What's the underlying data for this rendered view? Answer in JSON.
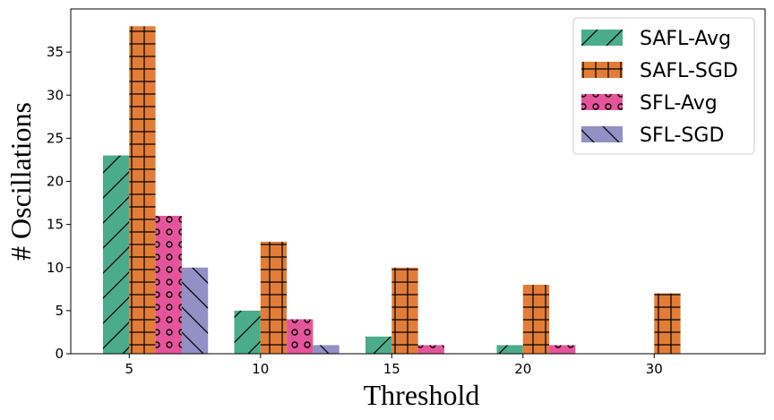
{
  "chart_data": {
    "type": "bar",
    "title": "",
    "xlabel": "Threshold",
    "ylabel": "# Oscillations",
    "categories": [
      "5",
      "10",
      "15",
      "20",
      "30"
    ],
    "ylim": [
      0,
      40
    ],
    "yticks": [
      0,
      5,
      10,
      15,
      20,
      25,
      30,
      35
    ],
    "grid": false,
    "legend_position": "top-right",
    "series": [
      {
        "name": "SAFL-Avg",
        "color": "#4aac8b",
        "hatch": "diagonal-slash",
        "values": [
          23,
          5,
          2,
          1,
          0
        ]
      },
      {
        "name": "SAFL-SGD",
        "color": "#e27d38",
        "hatch": "grid",
        "values": [
          38,
          13,
          10,
          8,
          7
        ]
      },
      {
        "name": "SFL-Avg",
        "color": "#e5559b",
        "hatch": "circles",
        "values": [
          16,
          4,
          1,
          1,
          0
        ]
      },
      {
        "name": "SFL-SGD",
        "color": "#9290c4",
        "hatch": "diagonal-backslash",
        "values": [
          10,
          1,
          0,
          0,
          0
        ]
      }
    ]
  }
}
